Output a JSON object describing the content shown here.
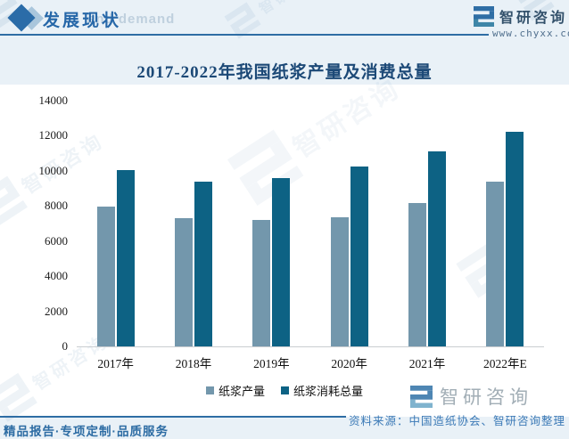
{
  "header": {
    "section_title": "发展现状",
    "bg_watermark_text": "and demand"
  },
  "brand": {
    "name": "智研咨询",
    "website": "www.chyxx.com"
  },
  "chart_data": {
    "type": "bar",
    "title": "2017-2022年我国纸浆产量及消费总量",
    "categories": [
      "2017年",
      "2018年",
      "2019年",
      "2020年",
      "2021年",
      "2022年E"
    ],
    "series": [
      {
        "name": "纸浆产量",
        "color": "#7397AC",
        "values": [
          7949,
          7301,
          7207,
          7335,
          8177,
          9400
        ]
      },
      {
        "name": "纸浆消耗总量",
        "color": "#0D6284",
        "values": [
          10051,
          9387,
          9609,
          10241,
          11085,
          12230
        ]
      }
    ],
    "xlabel": "",
    "ylabel": "",
    "ylim": [
      0,
      14000
    ],
    "ytick_step": 2000,
    "grid": false,
    "legend_position": "bottom"
  },
  "source_note": "资料来源：中国造纸协会、智研咨询整理",
  "footer": {
    "tagline": "精品报告·专项定制·品质服务"
  },
  "watermark_name": "智研咨询",
  "colors": {
    "accent_blue": "#2E6DA4",
    "band_bg": "#E9F1F7",
    "bar_light": "#7397AC",
    "bar_dark": "#0D6284",
    "title_navy": "#1C4977",
    "logo_blue": "#2F6EA5",
    "logo_teal": "#6AA8C2",
    "gray_text": "#A2AEB6"
  }
}
